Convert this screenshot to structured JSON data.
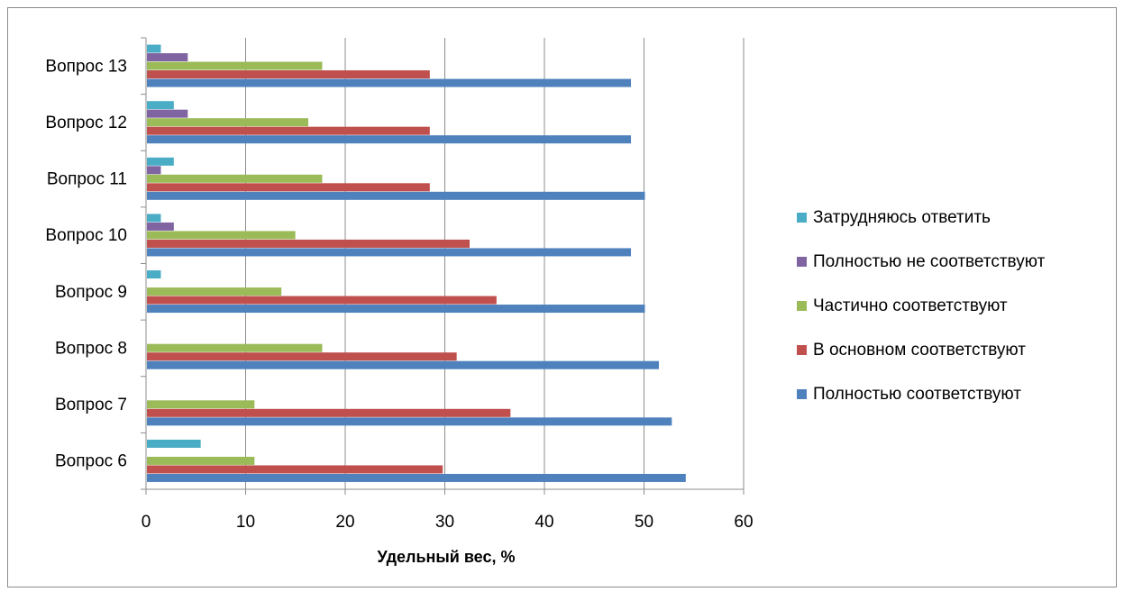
{
  "chart_data": {
    "type": "bar",
    "orientation": "horizontal",
    "title": "",
    "xlabel": "Удельный вес, %",
    "ylabel": "",
    "xlim": [
      0,
      60
    ],
    "x_ticks": [
      "0",
      "10",
      "20",
      "30",
      "40",
      "50",
      "60"
    ],
    "grid": true,
    "legend_position": "right",
    "categories": [
      "Вопрос 6",
      "Вопрос 7",
      "Вопрос 8",
      "Вопрос 9",
      "Вопрос 10",
      "Вопрос 11",
      "Вопрос 12",
      "Вопрос 13"
    ],
    "series": [
      {
        "name": "Полностью соответствуют",
        "color": "#4f81bd",
        "values": [
          54.1,
          52.7,
          51.4,
          50.0,
          48.6,
          50.0,
          48.6,
          48.6
        ]
      },
      {
        "name": "В основном соответствуют",
        "color": "#c0504d",
        "values": [
          29.7,
          36.5,
          31.1,
          35.1,
          32.4,
          28.4,
          28.4,
          28.4
        ]
      },
      {
        "name": "Частично соответствуют",
        "color": "#9bbb59",
        "values": [
          10.8,
          10.8,
          17.6,
          13.5,
          14.9,
          17.6,
          16.2,
          17.6
        ]
      },
      {
        "name": "Полностью не соответствуют",
        "color": "#8064a2",
        "values": [
          0,
          0,
          0,
          0,
          2.7,
          1.4,
          4.1,
          4.1
        ]
      },
      {
        "name": "Затрудняюсь ответить",
        "color": "#4bacc6",
        "values": [
          5.4,
          0,
          0,
          1.4,
          1.4,
          2.7,
          2.7,
          1.4
        ]
      }
    ]
  }
}
